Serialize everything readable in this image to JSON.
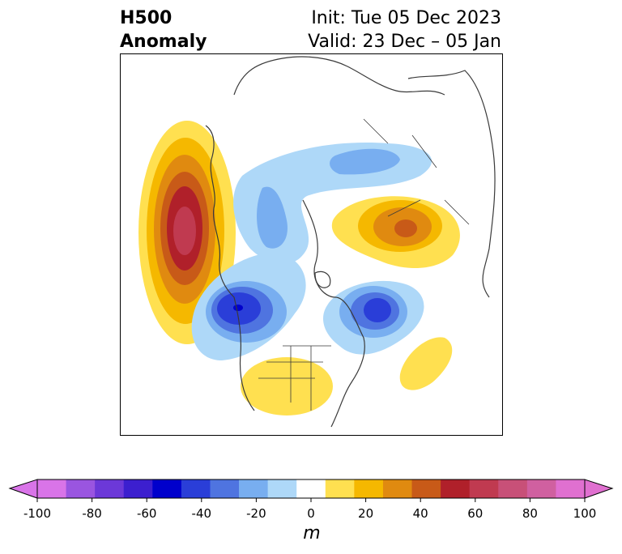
{
  "title": {
    "left_line1": "H500",
    "left_line2": "Anomaly",
    "right_line1": "Init: Tue 05 Dec 2023",
    "right_line2": "Valid: 23 Dec – 05 Jan"
  },
  "colorbar": {
    "unit": "m",
    "ticks": [
      "-100",
      "-80",
      "-60",
      "-40",
      "-20",
      "0",
      "20",
      "40",
      "60",
      "80",
      "100"
    ],
    "tick_values": [
      -100,
      -80,
      -60,
      -40,
      -20,
      0,
      20,
      40,
      60,
      80,
      100
    ],
    "bin_edges": [
      -100,
      -90,
      -80,
      -70,
      -60,
      -50,
      -40,
      -30,
      -20,
      -10,
      10,
      20,
      30,
      40,
      50,
      60,
      70,
      80,
      90,
      100
    ],
    "colors": [
      "#d974e8",
      "#9a55e0",
      "#6c38d8",
      "#3c1fcf",
      "#0000cc",
      "#2a3ed8",
      "#4f74e0",
      "#78aef0",
      "#aed8f8",
      "#ffffff",
      "#ffe050",
      "#f5b800",
      "#e08a10",
      "#c85a18",
      "#b0202a",
      "#c03a50",
      "#c85078",
      "#d060a0",
      "#e070d0"
    ],
    "under_color": "#d974e8",
    "over_color": "#e070d0"
  },
  "colors": {
    "coastline": "#3a3a3a",
    "map_background": "#ffffff"
  }
}
